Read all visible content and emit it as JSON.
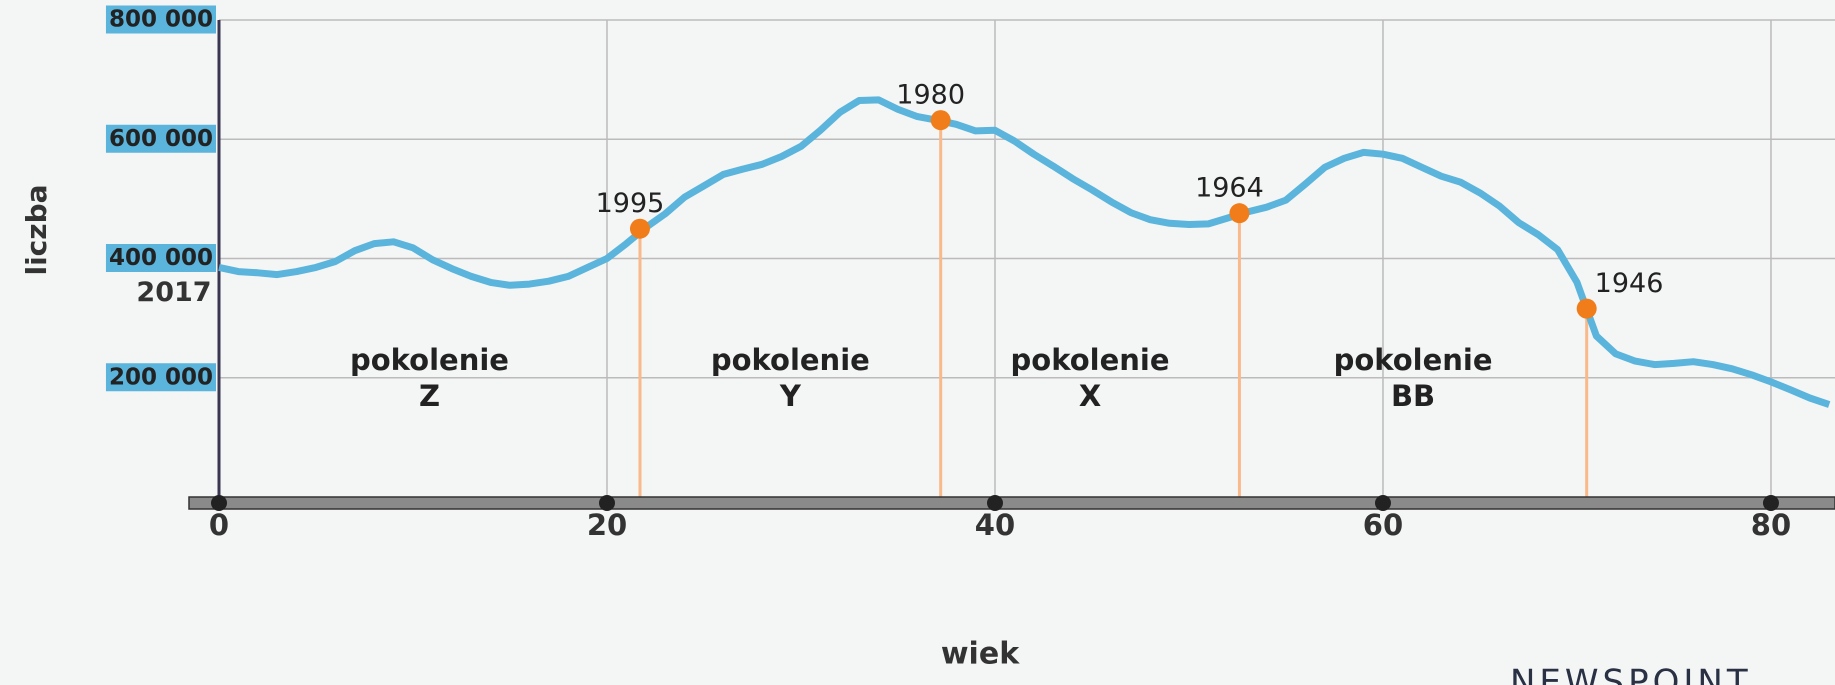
{
  "chart_data": {
    "type": "line",
    "y_label": "liczba",
    "x_label": "wiek",
    "color": "#5ab4dc",
    "grid": true,
    "xlim": [
      0,
      83.3
    ],
    "xticks": [
      0,
      20,
      40,
      60,
      80
    ],
    "ylim": [
      0,
      800000
    ],
    "yticks": [
      {
        "value": 200000,
        "label": "200 000"
      },
      {
        "value": 400000,
        "label": "400 000"
      },
      {
        "value": 600000,
        "label": "600 000"
      },
      {
        "value": 800000,
        "label": "800 000"
      }
    ],
    "x": [
      0,
      1,
      2,
      3,
      4,
      5,
      6,
      7,
      8,
      9,
      10,
      11,
      12,
      13,
      14,
      15,
      16,
      17,
      18,
      19,
      20,
      21,
      22,
      23,
      24,
      25,
      26,
      27,
      28,
      29,
      30,
      31,
      32,
      33,
      34,
      35,
      36,
      37,
      38,
      39,
      40,
      41,
      42,
      43,
      44,
      45,
      46,
      47,
      48,
      49,
      50,
      51,
      52,
      53,
      54,
      55,
      56,
      57,
      58,
      59,
      60,
      61,
      62,
      63,
      64,
      65,
      66,
      67,
      68,
      69,
      70,
      71,
      72,
      73,
      74,
      75,
      76,
      77,
      78,
      79,
      80,
      81,
      82,
      83
    ],
    "values": [
      385000,
      378000,
      376000,
      373000,
      378000,
      385000,
      395000,
      413000,
      425000,
      428000,
      418000,
      398000,
      383000,
      370000,
      360000,
      355000,
      357000,
      362000,
      370000,
      385000,
      400000,
      425000,
      452000,
      475000,
      503000,
      522000,
      541000,
      550000,
      558000,
      571000,
      588000,
      615000,
      645000,
      665000,
      666000,
      650000,
      638000,
      632000,
      625000,
      614000,
      615000,
      597000,
      575000,
      555000,
      534000,
      515000,
      495000,
      477000,
      465000,
      459000,
      457000,
      458000,
      468000,
      478000,
      486000,
      498000,
      525000,
      553000,
      568000,
      578000,
      575000,
      568000,
      553000,
      538000,
      528000,
      510000,
      488000,
      460000,
      440000,
      415000,
      360000,
      270000,
      240000,
      228000,
      222000,
      224000,
      227000,
      222000,
      215000,
      205000,
      193000,
      180000,
      166000,
      155000
    ],
    "start_label": "2017",
    "marker_color": "#f07d1a",
    "markers": [
      {
        "label": "1995",
        "x": 21.7,
        "y": 450000
      },
      {
        "label": "1980",
        "x": 37.2,
        "y": 632000
      },
      {
        "label": "1964",
        "x": 52.6,
        "y": 476000
      },
      {
        "label": "1946",
        "x": 70.5,
        "y": 316000
      }
    ],
    "generations": [
      [
        "pokolenie",
        "Z"
      ],
      [
        "pokolenie",
        "Y"
      ],
      [
        "pokolenie",
        "X"
      ],
      [
        "pokolenie",
        "BB"
      ]
    ],
    "source": "NEWSPOINT"
  }
}
